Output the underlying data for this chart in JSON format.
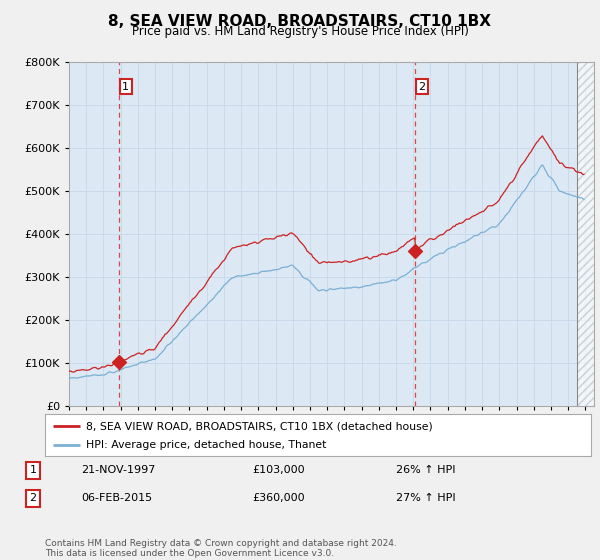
{
  "title": "8, SEA VIEW ROAD, BROADSTAIRS, CT10 1BX",
  "subtitle": "Price paid vs. HM Land Registry's House Price Index (HPI)",
  "ylim": [
    0,
    800000
  ],
  "xlim_start": 1995.3,
  "xlim_end": 2025.5,
  "sale1_year": 1997.896,
  "sale1_price": 103000,
  "sale2_year": 2015.096,
  "sale2_price": 360000,
  "hpi_color": "#7bafd4",
  "price_color": "#cc2222",
  "dashed_line_color": "#dd4444",
  "marker_color": "#cc2222",
  "legend_label1": "8, SEA VIEW ROAD, BROADSTAIRS, CT10 1BX (detached house)",
  "legend_label2": "HPI: Average price, detached house, Thanet",
  "annotation1_date": "21-NOV-1997",
  "annotation1_price": "£103,000",
  "annotation1_hpi": "26% ↑ HPI",
  "annotation2_date": "06-FEB-2015",
  "annotation2_price": "£360,000",
  "annotation2_hpi": "27% ↑ HPI",
  "footer": "Contains HM Land Registry data © Crown copyright and database right 2024.\nThis data is licensed under the Open Government Licence v3.0.",
  "background_color": "#f0f0f0",
  "plot_bg_color": "#dce9f5",
  "hatch_start": 2024.5
}
